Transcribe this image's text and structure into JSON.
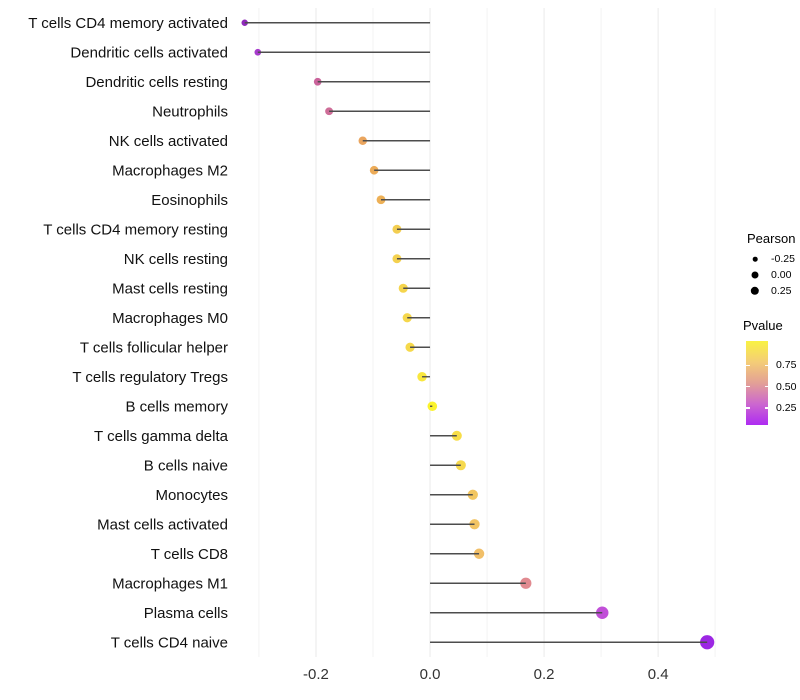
{
  "chart_data": {
    "type": "lollipop",
    "orientation": "horizontal",
    "title": "",
    "xlabel": "",
    "ylabel": "",
    "xlim": [
      -0.335,
      0.505
    ],
    "x_ticks": [
      {
        "value": -0.2,
        "label": "-0.2"
      },
      {
        "value": 0.0,
        "label": "0.0"
      },
      {
        "value": 0.2,
        "label": "0.2"
      },
      {
        "value": 0.4,
        "label": "0.4"
      }
    ],
    "x_minor_gridlines": [
      -0.3,
      -0.1,
      0.1,
      0.3,
      0.5
    ],
    "grid": "vertical major and minor, no horizontal",
    "stem_color": "#4D4D4D",
    "points": [
      {
        "label": "T cells CD4 memory activated",
        "pearson": -0.325,
        "color": "#8F2ABB"
      },
      {
        "label": "Dendritic cells activated",
        "pearson": -0.302,
        "color": "#A73BCC"
      },
      {
        "label": "Dendritic cells resting",
        "pearson": -0.197,
        "color": "#CA639B"
      },
      {
        "label": "Neutrophils",
        "pearson": -0.177,
        "color": "#CE6D98"
      },
      {
        "label": "NK cells activated",
        "pearson": -0.118,
        "color": "#EAA55E"
      },
      {
        "label": "Macrophages M2",
        "pearson": -0.098,
        "color": "#ECAB58"
      },
      {
        "label": "Eosinophils",
        "pearson": -0.086,
        "color": "#EDB056"
      },
      {
        "label": "T cells CD4 memory resting",
        "pearson": -0.058,
        "color": "#F3CE51"
      },
      {
        "label": "NK cells resting",
        "pearson": -0.058,
        "color": "#F4D14F"
      },
      {
        "label": "Mast cells resting",
        "pearson": -0.047,
        "color": "#F5D54D"
      },
      {
        "label": "Macrophages M0",
        "pearson": -0.04,
        "color": "#F5D74C"
      },
      {
        "label": "T cells follicular helper",
        "pearson": -0.035,
        "color": "#F6D94B"
      },
      {
        "label": "T cells regulatory  Tregs",
        "pearson": -0.014,
        "color": "#F9E73E"
      },
      {
        "label": "B cells memory",
        "pearson": 0.004,
        "color": "#FBF32C"
      },
      {
        "label": "T cells gamma delta",
        "pearson": 0.047,
        "color": "#F7DD48"
      },
      {
        "label": "B cells naive",
        "pearson": 0.054,
        "color": "#F6D94E"
      },
      {
        "label": "Monocytes",
        "pearson": 0.075,
        "color": "#F2C661"
      },
      {
        "label": "Mast cells activated",
        "pearson": 0.078,
        "color": "#F2C464"
      },
      {
        "label": "T cells CD8",
        "pearson": 0.086,
        "color": "#F1BF68"
      },
      {
        "label": "Macrophages M1",
        "pearson": 0.168,
        "color": "#E18A90"
      },
      {
        "label": "Plasma cells",
        "pearson": 0.302,
        "color": "#C14FD8"
      },
      {
        "label": "T cells CD4 naive",
        "pearson": 0.486,
        "color": "#9C27E3"
      }
    ],
    "legend_size": {
      "title": "Pearson",
      "dot_color": "#000000",
      "entries": [
        {
          "label": "-0.25",
          "radius": 2.3
        },
        {
          "label": "0.00",
          "radius": 3.5
        },
        {
          "label": "0.25",
          "radius": 4.2
        }
      ]
    },
    "legend_color": {
      "title": "Pvalue",
      "gradient": [
        "#F9F243",
        "#F4CD77",
        "#E3A096",
        "#CC67CF",
        "#AE2BF2"
      ],
      "ticks": [
        {
          "label": "0.75",
          "pos": 0.29
        },
        {
          "label": "0.50",
          "pos": 0.542
        },
        {
          "label": "0.25",
          "pos": 0.795
        }
      ]
    }
  }
}
